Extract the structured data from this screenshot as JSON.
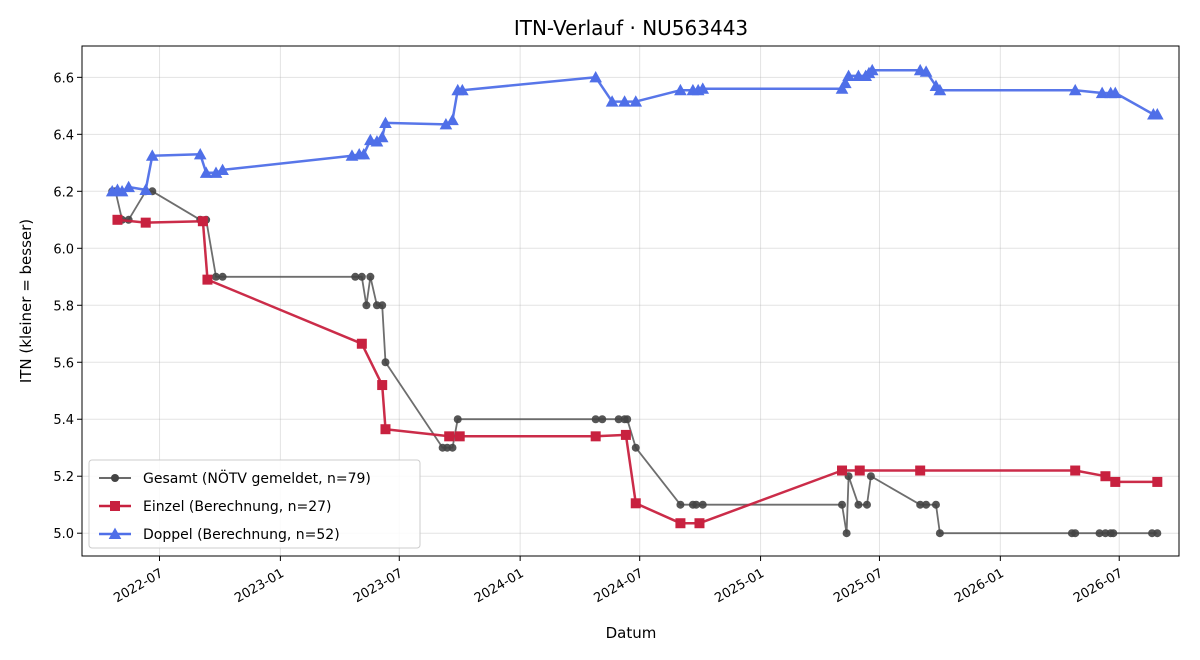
{
  "chart_data": {
    "type": "line",
    "title": "ITN-Verlauf · NU563443",
    "xlabel": "Datum",
    "ylabel": "ITN  (kleiner = besser)",
    "xlim": [
      "2022-03-05",
      "2026-09-30"
    ],
    "ylim": [
      4.92,
      6.71
    ],
    "x_ticks": [
      "2022-07",
      "2023-01",
      "2023-07",
      "2024-01",
      "2024-07",
      "2025-01",
      "2025-07",
      "2026-01",
      "2026-07"
    ],
    "y_ticks": [
      "5.0",
      "5.2",
      "5.4",
      "5.6",
      "5.8",
      "6.0",
      "6.2",
      "6.4",
      "6.6"
    ],
    "grid": true,
    "legend_position": "lower-left",
    "series": [
      {
        "name": "Gesamt (NÖTV gemeldet, n=79)",
        "color": "#666666",
        "marker": "circle",
        "points": [
          [
            "2022-04-20",
            6.2
          ],
          [
            "2022-04-25",
            6.2
          ],
          [
            "2022-05-05",
            6.1
          ],
          [
            "2022-05-15",
            6.1
          ],
          [
            "2022-06-10",
            6.2
          ],
          [
            "2022-06-20",
            6.2
          ],
          [
            "2022-09-01",
            6.1
          ],
          [
            "2022-09-10",
            6.1
          ],
          [
            "2022-09-25",
            5.9
          ],
          [
            "2022-10-05",
            5.9
          ],
          [
            "2023-04-25",
            5.9
          ],
          [
            "2023-05-05",
            5.9
          ],
          [
            "2023-05-12",
            5.8
          ],
          [
            "2023-05-18",
            5.9
          ],
          [
            "2023-05-28",
            5.8
          ],
          [
            "2023-06-05",
            5.8
          ],
          [
            "2023-06-10",
            5.6
          ],
          [
            "2023-09-05",
            5.3
          ],
          [
            "2023-09-12",
            5.3
          ],
          [
            "2023-09-20",
            5.3
          ],
          [
            "2023-09-28",
            5.4
          ],
          [
            "2024-04-25",
            5.4
          ],
          [
            "2024-05-05",
            5.4
          ],
          [
            "2024-05-30",
            5.4
          ],
          [
            "2024-06-08",
            5.4
          ],
          [
            "2024-06-12",
            5.4
          ],
          [
            "2024-06-25",
            5.3
          ],
          [
            "2024-09-01",
            5.1
          ],
          [
            "2024-09-20",
            5.1
          ],
          [
            "2024-09-25",
            5.1
          ],
          [
            "2024-10-05",
            5.1
          ],
          [
            "2025-05-05",
            5.1
          ],
          [
            "2025-05-12",
            5.0
          ],
          [
            "2025-05-15",
            5.2
          ],
          [
            "2025-05-30",
            5.1
          ],
          [
            "2025-06-12",
            5.1
          ],
          [
            "2025-06-18",
            5.2
          ],
          [
            "2025-09-01",
            5.1
          ],
          [
            "2025-09-10",
            5.1
          ],
          [
            "2025-09-25",
            5.1
          ],
          [
            "2025-10-01",
            5.0
          ],
          [
            "2026-04-20",
            5.0
          ],
          [
            "2026-04-25",
            5.0
          ],
          [
            "2026-06-01",
            5.0
          ],
          [
            "2026-06-10",
            5.0
          ],
          [
            "2026-06-18",
            5.0
          ],
          [
            "2026-06-22",
            5.0
          ],
          [
            "2026-08-20",
            5.0
          ],
          [
            "2026-08-28",
            5.0
          ]
        ]
      },
      {
        "name": "Einzel (Berechnung, n=27)",
        "color": "#c8213f",
        "marker": "square",
        "points": [
          [
            "2022-04-28",
            6.1
          ],
          [
            "2022-06-10",
            6.09
          ],
          [
            "2022-09-05",
            6.095
          ],
          [
            "2022-09-12",
            5.89
          ],
          [
            "2023-05-05",
            5.665
          ],
          [
            "2023-06-05",
            5.52
          ],
          [
            "2023-06-10",
            5.365
          ],
          [
            "2023-09-15",
            5.34
          ],
          [
            "2023-10-01",
            5.34
          ],
          [
            "2024-04-25",
            5.34
          ],
          [
            "2024-06-10",
            5.345
          ],
          [
            "2024-06-25",
            5.105
          ],
          [
            "2024-09-01",
            5.035
          ],
          [
            "2024-09-30",
            5.035
          ],
          [
            "2025-05-05",
            5.22
          ],
          [
            "2025-06-01",
            5.22
          ],
          [
            "2025-09-01",
            5.22
          ],
          [
            "2026-04-25",
            5.22
          ],
          [
            "2026-06-10",
            5.2
          ],
          [
            "2026-06-25",
            5.18
          ],
          [
            "2026-08-28",
            5.18
          ]
        ]
      },
      {
        "name": "Doppel (Berechnung, n=52)",
        "color": "#4f6fe8",
        "marker": "triangle",
        "points": [
          [
            "2022-04-20",
            6.2
          ],
          [
            "2022-04-28",
            6.205
          ],
          [
            "2022-05-05",
            6.2
          ],
          [
            "2022-05-15",
            6.215
          ],
          [
            "2022-06-10",
            6.205
          ],
          [
            "2022-06-20",
            6.325
          ],
          [
            "2022-09-01",
            6.33
          ],
          [
            "2022-09-10",
            6.265
          ],
          [
            "2022-09-25",
            6.265
          ],
          [
            "2022-10-05",
            6.275
          ],
          [
            "2023-04-20",
            6.325
          ],
          [
            "2023-05-01",
            6.33
          ],
          [
            "2023-05-08",
            6.33
          ],
          [
            "2023-05-18",
            6.38
          ],
          [
            "2023-05-28",
            6.375
          ],
          [
            "2023-06-05",
            6.39
          ],
          [
            "2023-06-10",
            6.44
          ],
          [
            "2023-09-10",
            6.435
          ],
          [
            "2023-09-20",
            6.45
          ],
          [
            "2023-09-28",
            6.555
          ],
          [
            "2023-10-05",
            6.555
          ],
          [
            "2024-04-25",
            6.6
          ],
          [
            "2024-05-20",
            6.515
          ],
          [
            "2024-06-08",
            6.515
          ],
          [
            "2024-06-25",
            6.515
          ],
          [
            "2024-09-01",
            6.555
          ],
          [
            "2024-09-20",
            6.555
          ],
          [
            "2024-09-28",
            6.555
          ],
          [
            "2024-10-05",
            6.56
          ],
          [
            "2025-05-05",
            6.56
          ],
          [
            "2025-05-10",
            6.58
          ],
          [
            "2025-05-15",
            6.605
          ],
          [
            "2025-05-30",
            6.605
          ],
          [
            "2025-06-10",
            6.605
          ],
          [
            "2025-06-15",
            6.615
          ],
          [
            "2025-06-20",
            6.625
          ],
          [
            "2025-09-01",
            6.625
          ],
          [
            "2025-09-10",
            6.62
          ],
          [
            "2025-09-25",
            6.57
          ],
          [
            "2025-10-01",
            6.555
          ],
          [
            "2026-04-25",
            6.555
          ],
          [
            "2026-06-05",
            6.545
          ],
          [
            "2026-06-18",
            6.545
          ],
          [
            "2026-06-25",
            6.545
          ],
          [
            "2026-08-22",
            6.47
          ],
          [
            "2026-08-28",
            6.47
          ]
        ]
      }
    ]
  }
}
